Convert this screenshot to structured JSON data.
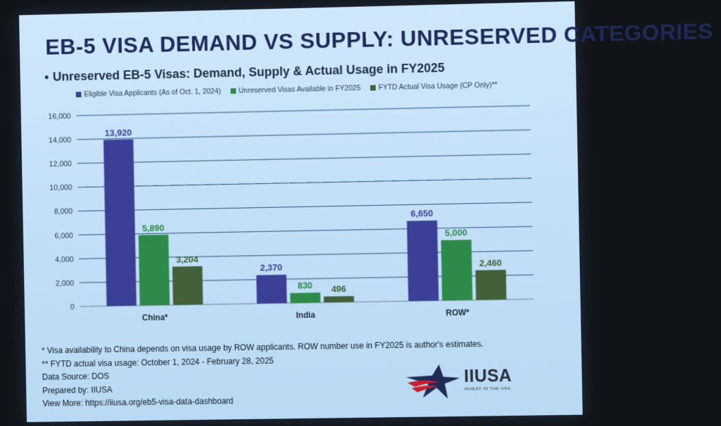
{
  "slide": {
    "title": "EB-5 VISA DEMAND VS SUPPLY: UNRESERVED CATEGORIES",
    "subtitle": "Unreserved EB-5 Visas: Demand, Supply & Actual Usage in FY2025",
    "bullet": "•"
  },
  "chart_data": {
    "type": "bar",
    "title": "Unreserved EB-5 Visas: Demand, Supply & Actual Usage in FY2025",
    "categories": [
      "China*",
      "India",
      "ROW*"
    ],
    "series": [
      {
        "name": "Eligible Visa Applicants (As of Oct. 1, 2024)",
        "color": "#3c3f96",
        "values": [
          13920,
          2370,
          6650
        ],
        "labels": [
          "13,920",
          "2,370",
          "6,650"
        ]
      },
      {
        "name": "Unreserved Visas Available in FY2025",
        "color": "#2e8a4a",
        "values": [
          5890,
          830,
          5000
        ],
        "labels": [
          "5,890",
          "830",
          "5,000"
        ]
      },
      {
        "name": "FYTD Actual Visa Usage (CP Only)**",
        "color": "#44603a",
        "values": [
          3204,
          496,
          2460
        ],
        "labels": [
          "3,204",
          "496",
          "2,460"
        ]
      }
    ],
    "ylim": [
      0,
      16000
    ],
    "yticks": [
      "0",
      "2,000",
      "4,000",
      "6,000",
      "8,000",
      "10,000",
      "12,000",
      "14,000",
      "16,000"
    ],
    "grid": true,
    "legend": "top"
  },
  "notes": {
    "footnote1": "* Visa availability to China depends on visa usage by ROW applicants. ROW number use in FY2025 is author's estimates.",
    "footnote2": "** FYTD actual visa usage: October 1, 2024 - February 28, 2025",
    "source": "Data Source: DOS",
    "prepared": "Prepared by: IIUSA",
    "more": "View More: https://iiusa.org/eb5-visa-data-dashboard"
  },
  "logo": {
    "name": "IIUSA",
    "tagline": "INVEST IN THE USA",
    "icon": "star-swoosh-icon"
  }
}
